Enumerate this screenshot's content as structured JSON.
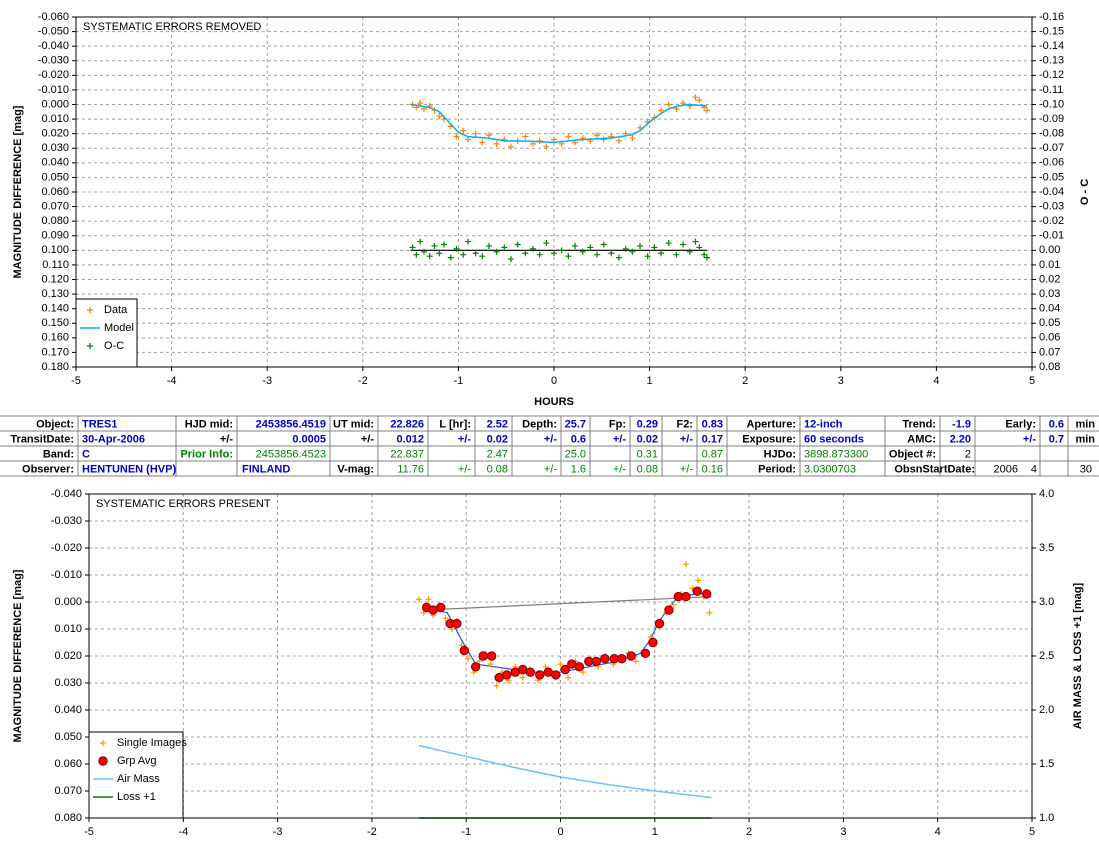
{
  "chart_data": [
    {
      "type": "scatter",
      "title": "SYSTEMATIC ERRORS REMOVED",
      "x_label": "HOURS",
      "y_label": "MAGNITUDE DIFFERENCE [mag]",
      "y2_label": "O - C",
      "xlim": [
        -5,
        5
      ],
      "xticks": [
        -5,
        -4,
        -3,
        -2,
        -1,
        0,
        1,
        2,
        3,
        4,
        5
      ],
      "ylim": [
        -0.06,
        0.18
      ],
      "y_inverted": true,
      "yticks": [
        {
          "value": -0.06,
          "label": "-0.060"
        },
        {
          "value": -0.05,
          "label": "-0.050"
        },
        {
          "value": -0.04,
          "label": "-0.040"
        },
        {
          "value": -0.03,
          "label": "-0.030"
        },
        {
          "value": -0.02,
          "label": "-0.020"
        },
        {
          "value": -0.01,
          "label": "-0.010"
        },
        {
          "value": 0,
          "label": "0.000"
        },
        {
          "value": 0.01,
          "label": "0.010"
        },
        {
          "value": 0.02,
          "label": "0.020"
        },
        {
          "value": 0.03,
          "label": "0.030"
        },
        {
          "value": 0.04,
          "label": "0.040"
        },
        {
          "value": 0.05,
          "label": "0.050"
        },
        {
          "value": 0.06,
          "label": "0.060"
        },
        {
          "value": 0.07,
          "label": "0.070"
        },
        {
          "value": 0.08,
          "label": "0.080"
        },
        {
          "value": 0.09,
          "label": "0.090"
        },
        {
          "value": 0.1,
          "label": "0.100"
        },
        {
          "value": 0.11,
          "label": "0.110"
        },
        {
          "value": 0.12,
          "label": "0.120"
        },
        {
          "value": 0.13,
          "label": "0.130"
        },
        {
          "value": 0.14,
          "label": "0.140"
        },
        {
          "value": 0.15,
          "label": "0.150"
        },
        {
          "value": 0.16,
          "label": "0.160"
        },
        {
          "value": 0.17,
          "label": "0.170"
        },
        {
          "value": 0.18,
          "label": "0.180"
        }
      ],
      "y2lim": [
        -0.16,
        0.08
      ],
      "y2_inverted": true,
      "y2ticks": [
        -0.16,
        -0.15,
        -0.14,
        -0.13,
        -0.12,
        -0.11,
        {
          "value": -0.1,
          "label": "-0.10"
        },
        -0.09,
        -0.08,
        -0.07,
        -0.06,
        -0.05,
        -0.04,
        -0.03,
        -0.02,
        -0.01,
        {
          "value": 0,
          "label": "0.00"
        },
        0.01,
        0.02,
        0.03,
        0.04,
        0.05,
        0.06,
        0.07,
        0.08
      ],
      "grid": true,
      "legend": "lower left",
      "series": [
        {
          "name": "Data",
          "color": "#ff8000",
          "marker": "plus",
          "x": [
            -1.48,
            -1.44,
            -1.4,
            -1.36,
            -1.3,
            -1.25,
            -1.2,
            -1.15,
            -1.08,
            -1.02,
            -0.95,
            -0.9,
            -0.82,
            -0.75,
            -0.68,
            -0.6,
            -0.52,
            -0.45,
            -0.38,
            -0.3,
            -0.22,
            -0.15,
            -0.08,
            0,
            0.08,
            0.15,
            0.22,
            0.3,
            0.38,
            0.45,
            0.52,
            0.6,
            0.68,
            0.75,
            0.82,
            0.9,
            0.98,
            1.05,
            1.12,
            1.2,
            1.28,
            1.35,
            1.42,
            1.48,
            1.52,
            1.57,
            1.6
          ],
          "values": [
            0,
            0.002,
            -0.001,
            0.003,
            0.001,
            0.004,
            0.008,
            0.01,
            0.015,
            0.022,
            0.018,
            0.024,
            0.02,
            0.026,
            0.021,
            0.027,
            0.024,
            0.029,
            0.025,
            0.022,
            0.027,
            0.025,
            0.029,
            0.024,
            0.027,
            0.022,
            0.026,
            0.023,
            0.025,
            0.021,
            0.024,
            0.022,
            0.025,
            0.02,
            0.023,
            0.016,
            0.012,
            0.009,
            0.004,
            0,
            0.003,
            -0.001,
            0.001,
            -0.005,
            -0.003,
            0.002,
            0.004
          ]
        },
        {
          "name": "Model",
          "color": "#00b0f0",
          "marker": "line",
          "x": [
            -1.5,
            -1.4,
            -1.3,
            -1.2,
            -1.1,
            -1.0,
            -0.9,
            -0.7,
            -0.5,
            -0.3,
            0,
            0.3,
            0.6,
            0.8,
            0.9,
            1.0,
            1.1,
            1.2,
            1.3,
            1.4,
            1.6
          ],
          "values": [
            0,
            0.001,
            0.002,
            0.005,
            0.012,
            0.019,
            0.022,
            0.023,
            0.025,
            0.025,
            0.026,
            0.024,
            0.023,
            0.021,
            0.018,
            0.012,
            0.007,
            0.003,
            0.001,
            0,
            0.001
          ]
        },
        {
          "name": "O-C",
          "color": "#008000",
          "marker": "plus",
          "axis": "y2",
          "x": [
            -1.48,
            -1.44,
            -1.4,
            -1.36,
            -1.3,
            -1.25,
            -1.2,
            -1.15,
            -1.08,
            -1.02,
            -0.95,
            -0.9,
            -0.82,
            -0.75,
            -0.68,
            -0.6,
            -0.52,
            -0.45,
            -0.38,
            -0.3,
            -0.22,
            -0.15,
            -0.08,
            0,
            0.08,
            0.15,
            0.22,
            0.3,
            0.38,
            0.45,
            0.52,
            0.6,
            0.68,
            0.75,
            0.82,
            0.9,
            0.98,
            1.05,
            1.12,
            1.2,
            1.28,
            1.35,
            1.42,
            1.48,
            1.52,
            1.57,
            1.6
          ],
          "values": [
            -0.002,
            0.003,
            -0.006,
            0.001,
            0.004,
            -0.003,
            0.002,
            -0.004,
            0.005,
            -0.001,
            0.003,
            -0.006,
            0.002,
            0.004,
            -0.003,
            0.001,
            -0.002,
            0.006,
            -0.004,
            0.002,
            -0.001,
            0.003,
            -0.005,
            0.002,
            0,
            0.004,
            -0.003,
            0.001,
            -0.002,
            0.003,
            -0.004,
            0.002,
            0.005,
            -0.001,
            0.001,
            -0.003,
            0.004,
            -0.002,
            0.002,
            -0.005,
            0.003,
            -0.004,
            0.001,
            -0.006,
            -0.002,
            0.003,
            0.005
          ]
        }
      ],
      "lines": [
        {
          "color": "#000000",
          "axis": "y2",
          "x": [
            -1.5,
            1.6
          ],
          "values": [
            0,
            0
          ]
        }
      ]
    },
    {
      "type": "scatter",
      "title": "SYSTEMATIC ERRORS PRESENT",
      "y_label": "MAGNITUDE DIFFERENCE [mag]",
      "y2_label": "AIR MASS & LOSS +1 [mag]",
      "xlim": [
        -5,
        5
      ],
      "xticks": [
        -5,
        -4,
        -3,
        -2,
        -1,
        0,
        1,
        2,
        3,
        4,
        5
      ],
      "ylim": [
        -0.04,
        0.08
      ],
      "y_inverted": true,
      "yticks": [
        {
          "value": -0.04,
          "label": "-0.040"
        },
        {
          "value": -0.03,
          "label": "-0.030"
        },
        {
          "value": -0.02,
          "label": "-0.020"
        },
        {
          "value": -0.01,
          "label": "-0.010"
        },
        {
          "value": 0,
          "label": "0.000"
        },
        {
          "value": 0.01,
          "label": "0.010"
        },
        {
          "value": 0.02,
          "label": "0.020"
        },
        {
          "value": 0.03,
          "label": "0.030"
        },
        {
          "value": 0.04,
          "label": "0.040"
        },
        {
          "value": 0.05,
          "label": "0.050"
        },
        {
          "value": 0.06,
          "label": "0.060"
        },
        {
          "value": 0.07,
          "label": "0.070"
        },
        {
          "value": 0.08,
          "label": "0.080"
        }
      ],
      "y2lim": [
        1,
        4
      ],
      "y2_inverted": false,
      "y2ticks": [
        {
          "value": 1,
          "label": "1.0"
        },
        1.5,
        {
          "value": 2,
          "label": "2.0"
        },
        2.5,
        {
          "value": 3,
          "label": "3.0"
        },
        3.5,
        {
          "value": 4,
          "label": "4.0"
        }
      ],
      "grid": true,
      "legend": "lower left",
      "series": [
        {
          "name": "Single Images",
          "color": "#ff9900",
          "marker": "plus",
          "x": [
            -1.5,
            -1.45,
            -1.4,
            -1.35,
            -1.28,
            -1.22,
            -1.15,
            -1.1,
            -1.05,
            -0.98,
            -0.92,
            -0.86,
            -0.8,
            -0.74,
            -0.68,
            -0.62,
            -0.55,
            -0.48,
            -0.4,
            -0.32,
            -0.24,
            -0.16,
            -0.08,
            0,
            0.08,
            0.16,
            0.24,
            0.32,
            0.4,
            0.48,
            0.56,
            0.64,
            0.72,
            0.8,
            0.88,
            0.96,
            1.04,
            1.12,
            1.2,
            1.28,
            1.33,
            1.4,
            1.46,
            1.52,
            1.58
          ],
          "values": [
            -0.001,
            0.004,
            -0.001,
            0.005,
            0.002,
            0.006,
            0.01,
            0.007,
            0.016,
            0.021,
            0.026,
            0.022,
            0.019,
            0.023,
            0.031,
            0.026,
            0.029,
            0.024,
            0.028,
            0.025,
            0.029,
            0.024,
            0.027,
            0.023,
            0.028,
            0.022,
            0.026,
            0.021,
            0.024,
            0.02,
            0.023,
            0.021,
            0.019,
            0.022,
            0.018,
            0.013,
            0.009,
            0.004,
            0.001,
            -0.003,
            -0.014,
            -0.005,
            -0.008,
            -0.002,
            0.004
          ]
        },
        {
          "name": "Grp Avg",
          "color": "#ff0000",
          "marker": "circle",
          "x": [
            -1.42,
            -1.35,
            -1.27,
            -1.17,
            -1.1,
            -1.02,
            -0.9,
            -0.82,
            -0.73,
            -0.65,
            -0.57,
            -0.48,
            -0.4,
            -0.32,
            -0.22,
            -0.13,
            -0.05,
            0.05,
            0.12,
            0.2,
            0.3,
            0.38,
            0.47,
            0.57,
            0.65,
            0.75,
            0.9,
            0.98,
            1.05,
            1.15,
            1.25,
            1.33,
            1.45,
            1.55
          ],
          "values": [
            0.002,
            0.003,
            0.002,
            0.008,
            0.008,
            0.018,
            0.024,
            0.02,
            0.02,
            0.028,
            0.027,
            0.026,
            0.025,
            0.026,
            0.027,
            0.026,
            0.027,
            0.025,
            0.023,
            0.024,
            0.022,
            0.022,
            0.021,
            0.021,
            0.021,
            0.02,
            0.019,
            0.015,
            0.008,
            0.003,
            -0.002,
            -0.002,
            -0.004,
            -0.003
          ]
        },
        {
          "name": "Air Mass",
          "color": "#66c2ff",
          "marker": "line",
          "axis": "y2",
          "x": [
            -1.5,
            -1.0,
            -0.5,
            0,
            0.5,
            1.0,
            1.6
          ],
          "values": [
            1.67,
            1.57,
            1.47,
            1.38,
            1.31,
            1.25,
            1.19
          ]
        },
        {
          "name": "Loss +1",
          "color": "#008000",
          "marker": "line",
          "axis": "y2",
          "x": [
            -1.5,
            1.6
          ],
          "values": [
            1,
            1
          ]
        }
      ],
      "lines": [
        {
          "color": "#2255dd",
          "axis": "y",
          "x": [
            -1.45,
            -1.2,
            -1.05,
            -0.9,
            -0.7,
            -0.5,
            -0.3,
            0,
            0.3,
            0.6,
            0.85,
            0.95,
            1.05,
            1.15,
            1.25,
            1.45,
            1.57
          ],
          "values": [
            0.002,
            0.004,
            0.014,
            0.023,
            0.024,
            0.025,
            0.026,
            0.026,
            0.024,
            0.022,
            0.019,
            0.014,
            0.007,
            0.002,
            -0.002,
            -0.003,
            -0.003
          ]
        },
        {
          "color": "#808080",
          "axis": "y",
          "x": [
            -1.45,
            1.6
          ],
          "values": [
            0.003,
            -0.002
          ]
        }
      ]
    }
  ],
  "table": {
    "rows": [
      [
        "Object:",
        "TRES1",
        "HJD mid:",
        "2453856.4519",
        "UT mid:",
        "22.826",
        "L [hr]:",
        "2.52",
        "Depth:",
        "25.7",
        "Fp:",
        "0.29",
        "F2:",
        "0.83",
        "Aperture:",
        "12-inch",
        "Trend:",
        "-1.9",
        "Early:",
        "0.6",
        "min"
      ],
      [
        "TransitDate:",
        "30-Apr-2006",
        "+/-",
        "0.0005",
        "+/-",
        "0.012",
        "+/-",
        "0.02",
        "+/-",
        "0.6",
        "+/-",
        "0.02",
        "+/-",
        "0.17",
        "Exposure:",
        "60 seconds",
        "AMC:",
        "2.20",
        "+/-",
        "0.7",
        "min"
      ],
      [
        "Band:",
        "C",
        "Prior Info:",
        "2453856.4523",
        null,
        "22.837",
        null,
        "2.47",
        null,
        "25.0",
        null,
        "0.31",
        null,
        "0.87",
        "HJDo:",
        "3898.873300",
        "Object #:",
        "2",
        null,
        null,
        null
      ],
      [
        "Observer:",
        "HENTUNEN (HVP)",
        null,
        "FINLAND",
        "V-mag:",
        "11.76",
        "+/-",
        "0.08",
        "+/-",
        "1.6",
        "+/-",
        "0.08",
        "+/-",
        "0.16",
        "Period:",
        "3.0300703",
        "ObsnStartDate:",
        "2006",
        "4",
        "30"
      ]
    ]
  }
}
